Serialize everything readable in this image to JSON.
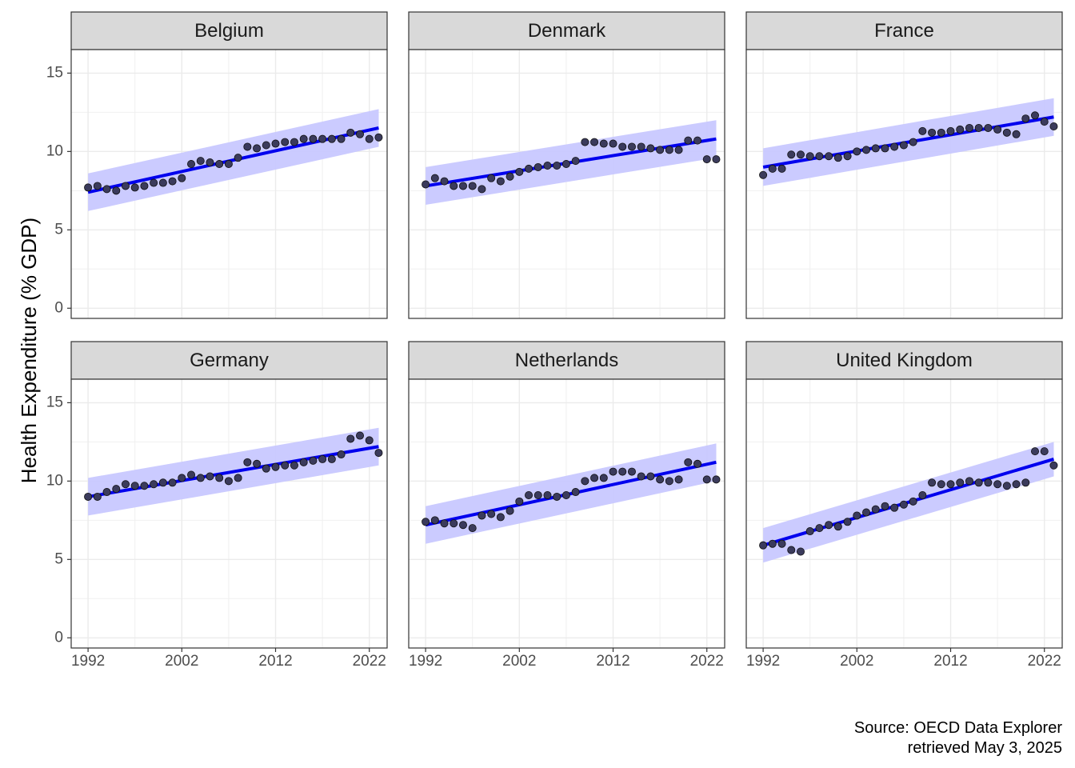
{
  "chart_data": {
    "type": "scatter",
    "layout": "facet-grid",
    "ylabel": "Health Expenditure (% GDP)",
    "xlabel": "",
    "caption": [
      "Source: OECD Data Explorer",
      "retrieved May 3, 2025"
    ],
    "x_ticks": [
      1992,
      2002,
      2012,
      2022
    ],
    "y_ticks": [
      0,
      5,
      10,
      15
    ],
    "xlim": [
      1990.2,
      2023.9
    ],
    "ylim": [
      -0.65,
      16.5
    ],
    "grid": true,
    "point_color": "#3b3b5c",
    "trend_color": "#0000ee",
    "band_color": "#c8c8ff",
    "x": [
      1992,
      1993,
      1994,
      1995,
      1996,
      1997,
      1998,
      1999,
      2000,
      2001,
      2002,
      2003,
      2004,
      2005,
      2006,
      2007,
      2008,
      2009,
      2010,
      2011,
      2012,
      2013,
      2014,
      2015,
      2016,
      2017,
      2018,
      2019,
      2020,
      2021,
      2022,
      2023
    ],
    "facets": [
      {
        "name": "Belgium",
        "values": [
          7.7,
          7.8,
          7.6,
          7.5,
          7.8,
          7.7,
          7.8,
          8.0,
          8.0,
          8.1,
          8.3,
          9.2,
          9.4,
          9.3,
          9.2,
          9.2,
          9.6,
          10.3,
          10.2,
          10.4,
          10.5,
          10.6,
          10.6,
          10.8,
          10.8,
          10.8,
          10.8,
          10.8,
          11.2,
          11.1,
          10.8,
          10.9
        ],
        "trend": [
          7.4,
          11.5
        ],
        "band": 1.2
      },
      {
        "name": "Denmark",
        "values": [
          7.9,
          8.3,
          8.1,
          7.8,
          7.8,
          7.8,
          7.6,
          8.3,
          8.1,
          8.4,
          8.7,
          8.9,
          9.0,
          9.1,
          9.1,
          9.2,
          9.4,
          10.6,
          10.6,
          10.5,
          10.5,
          10.3,
          10.3,
          10.3,
          10.2,
          10.1,
          10.1,
          10.1,
          10.7,
          10.7,
          9.5,
          9.5
        ],
        "trend": [
          7.8,
          10.8
        ],
        "band": 1.2
      },
      {
        "name": "France",
        "values": [
          8.5,
          8.9,
          8.9,
          9.8,
          9.8,
          9.7,
          9.7,
          9.7,
          9.6,
          9.7,
          10.0,
          10.1,
          10.2,
          10.2,
          10.3,
          10.4,
          10.6,
          11.3,
          11.2,
          11.2,
          11.3,
          11.4,
          11.5,
          11.5,
          11.5,
          11.4,
          11.2,
          11.1,
          12.1,
          12.3,
          11.9,
          11.6
        ],
        "trend": [
          9.0,
          12.2
        ],
        "band": 1.2
      },
      {
        "name": "Germany",
        "values": [
          9.0,
          9.0,
          9.3,
          9.5,
          9.8,
          9.7,
          9.7,
          9.8,
          9.9,
          9.9,
          10.2,
          10.4,
          10.2,
          10.3,
          10.2,
          10.0,
          10.2,
          11.2,
          11.1,
          10.8,
          10.9,
          11.0,
          11.0,
          11.2,
          11.3,
          11.4,
          11.4,
          11.7,
          12.7,
          12.9,
          12.6,
          11.8
        ],
        "trend": [
          9.0,
          12.2
        ],
        "band": 1.2
      },
      {
        "name": "Netherlands",
        "values": [
          7.4,
          7.5,
          7.3,
          7.3,
          7.2,
          7.0,
          7.8,
          7.9,
          7.7,
          8.1,
          8.7,
          9.1,
          9.1,
          9.1,
          9.0,
          9.1,
          9.3,
          10.0,
          10.2,
          10.2,
          10.6,
          10.6,
          10.6,
          10.3,
          10.3,
          10.1,
          10.0,
          10.1,
          11.2,
          11.1,
          10.1,
          10.1
        ],
        "trend": [
          7.2,
          11.2
        ],
        "band": 1.2
      },
      {
        "name": "United Kingdom",
        "values": [
          5.9,
          6.0,
          6.0,
          5.6,
          5.5,
          6.8,
          7.0,
          7.2,
          7.1,
          7.4,
          7.8,
          8.0,
          8.2,
          8.4,
          8.3,
          8.5,
          8.7,
          9.1,
          9.9,
          9.8,
          9.8,
          9.9,
          10.0,
          9.9,
          9.9,
          9.8,
          9.7,
          9.8,
          9.9,
          11.9,
          11.9,
          11.0
        ],
        "trend": [
          5.9,
          11.4
        ],
        "band": 1.1
      }
    ]
  }
}
